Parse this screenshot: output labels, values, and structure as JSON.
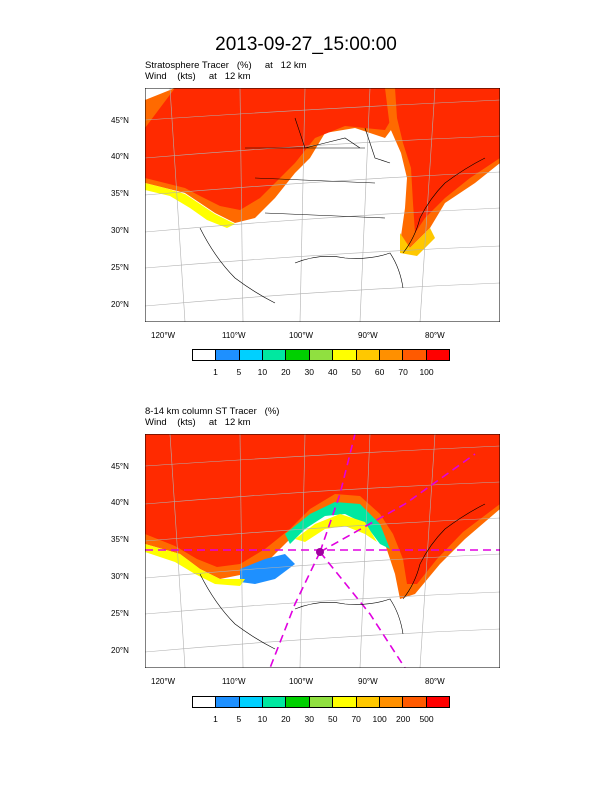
{
  "title": "2013-09-27_15:00:00",
  "panels": [
    {
      "id": "top",
      "subtitle_line1": "Stratosphere Tracer   (%)     at   12 km",
      "subtitle_line2": "Wind    (kts)     at   12 km",
      "lat_labels": [
        "45°N",
        "40°N",
        "35°N",
        "30°N",
        "25°N",
        "20°N"
      ],
      "lon_labels": [
        "120°W",
        "110°W",
        "100°W",
        "90°W",
        "80°W"
      ],
      "colorbar_labels": [
        "1",
        "5",
        "10",
        "20",
        "30",
        "40",
        "50",
        "60",
        "70",
        "100"
      ]
    },
    {
      "id": "bottom",
      "subtitle_line1": "8-14 km column ST Tracer   (%)",
      "subtitle_line2": "Wind    (kts)     at   12 km",
      "lat_labels": [
        "45°N",
        "40°N",
        "35°N",
        "30°N",
        "25°N",
        "20°N"
      ],
      "lon_labels": [
        "120°W",
        "110°W",
        "100°W",
        "90°W",
        "80°W"
      ],
      "colorbar_labels": [
        "1",
        "5",
        "10",
        "20",
        "30",
        "50",
        "70",
        "100",
        "200",
        "500"
      ]
    }
  ],
  "colorbar_colors": [
    "#ffffff",
    "#1e90ff",
    "#00d0ff",
    "#00e8a0",
    "#00d000",
    "#90e040",
    "#ffff00",
    "#ffc800",
    "#ff9000",
    "#ff5a00",
    "#ff0000"
  ],
  "colors": {
    "tracer_high": "#ff2a00",
    "tracer_mid": "#ff6a00",
    "trajectory": "#e000e0",
    "grid": "#b0b0b0"
  }
}
